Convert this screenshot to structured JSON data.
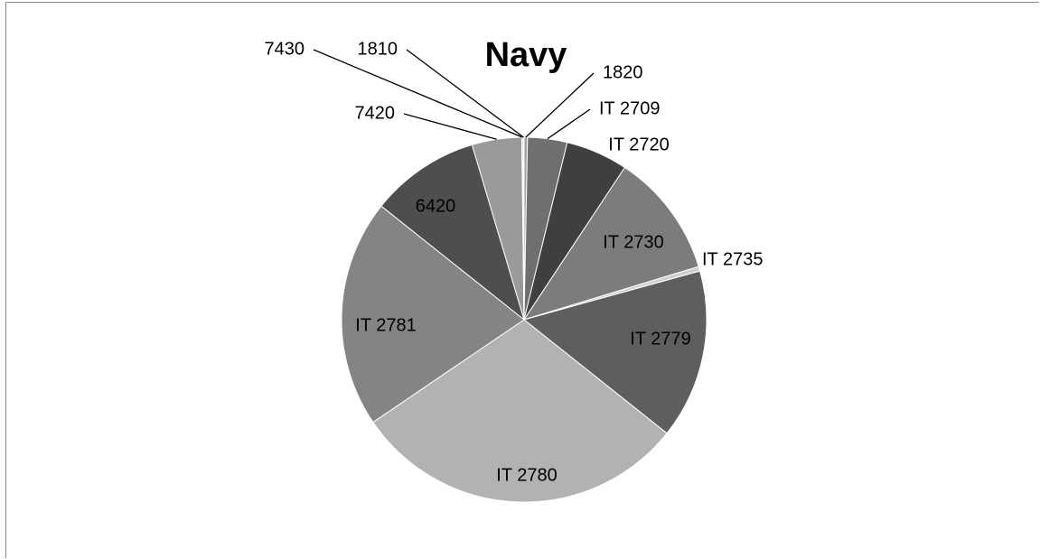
{
  "chart_data": {
    "type": "pie",
    "title": "Navy",
    "legend": "none",
    "start_angle_deg": 0,
    "direction": "clockwise",
    "slices": [
      {
        "label": "1820",
        "value": 0.3,
        "color": "#a0a0a0"
      },
      {
        "label": "IT 2709",
        "value": 3.5,
        "color": "#6f6f6f"
      },
      {
        "label": "IT 2720",
        "value": 5.5,
        "color": "#3f3f3f"
      },
      {
        "label": "IT 2730",
        "value": 11.0,
        "color": "#7c7c7c"
      },
      {
        "label": "IT 2735",
        "value": 0.4,
        "color": "#cfcfcf"
      },
      {
        "label": "IT 2779",
        "value": 15.0,
        "color": "#5e5e5e"
      },
      {
        "label": "IT 2780",
        "value": 29.8,
        "color": "#b2b2b2"
      },
      {
        "label": "IT 2781",
        "value": 20.2,
        "color": "#848484"
      },
      {
        "label": "6420",
        "value": 9.7,
        "color": "#4e4e4e"
      },
      {
        "label": "7420",
        "value": 4.4,
        "color": "#9a9a9a"
      },
      {
        "label": "7430",
        "value": 0.1,
        "color": "#555555"
      },
      {
        "label": "1810",
        "value": 0.1,
        "color": "#dddddd"
      }
    ]
  }
}
